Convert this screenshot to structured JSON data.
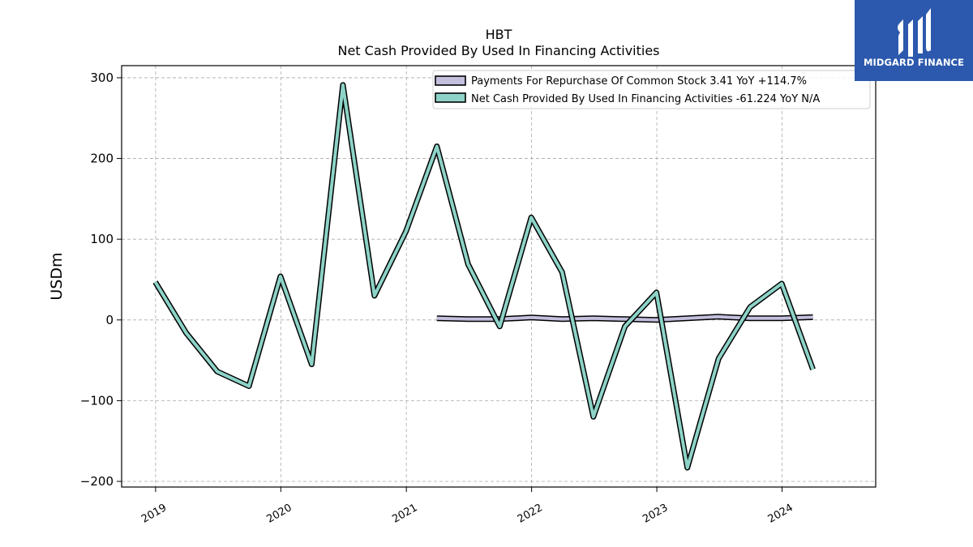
{
  "header": {
    "ticker": "HBT",
    "subtitle": "Net Cash Provided By Used In Financing Activities"
  },
  "logo": {
    "text": "MIDGARD FINANCE",
    "background": "#2c59ad"
  },
  "chart_data": {
    "type": "line",
    "title": "HBT",
    "subtitle": "Net Cash Provided By Used In Financing Activities",
    "ylabel": "USDm",
    "xlabel": "",
    "ylim": [
      -207,
      315
    ],
    "xlim": [
      "2018-09-24",
      "2024-09-30"
    ],
    "yticks": [
      300,
      200,
      100,
      0,
      -100,
      -200
    ],
    "ytick_labels": [
      "300",
      "200",
      "100",
      "0",
      "−100",
      "−200"
    ],
    "xticks": [
      "2019-01-01",
      "2020-01-01",
      "2021-01-01",
      "2022-01-01",
      "2023-01-01",
      "2024-01-01"
    ],
    "xtick_labels": [
      "2019",
      "2020",
      "2021",
      "2022",
      "2023",
      "2024"
    ],
    "grid": true,
    "legend_position": "top-right",
    "series": [
      {
        "name": "Payments For Repurchase Of Common Stock",
        "legend_label": "Payments For Repurchase Of Common Stock  3.41 YoY +114.7%",
        "color": "#c2c0dd",
        "x": [
          "2021-03-31",
          "2021-06-30",
          "2021-09-30",
          "2021-12-31",
          "2022-03-31",
          "2022-06-30",
          "2022-09-30",
          "2022-12-31",
          "2023-03-31",
          "2023-06-30",
          "2023-09-30",
          "2023-12-31",
          "2024-03-31"
        ],
        "values": [
          2,
          1,
          1,
          3,
          1,
          2,
          1,
          0,
          2,
          4,
          2,
          2,
          3.41
        ]
      },
      {
        "name": "Net Cash Provided By Used In Financing Activities",
        "legend_label": "Net Cash Provided By Used In Financing Activities  -61.224 YoY N/A",
        "color": "#8dd3c7",
        "x": [
          "2018-12-31",
          "2019-03-31",
          "2019-06-30",
          "2019-09-30",
          "2019-12-31",
          "2020-03-31",
          "2020-06-30",
          "2020-09-30",
          "2020-12-31",
          "2021-03-31",
          "2021-06-30",
          "2021-09-30",
          "2021-12-31",
          "2022-03-31",
          "2022-06-30",
          "2022-09-30",
          "2022-12-31",
          "2023-03-31",
          "2023-06-30",
          "2023-09-30",
          "2023-12-31",
          "2024-03-31"
        ],
        "values": [
          47,
          -16,
          -64,
          -82,
          54,
          -55,
          291,
          30,
          110,
          215,
          69,
          -8,
          127,
          59,
          -120,
          -8,
          34,
          -183,
          -48,
          16,
          45,
          -61.224
        ]
      }
    ]
  }
}
